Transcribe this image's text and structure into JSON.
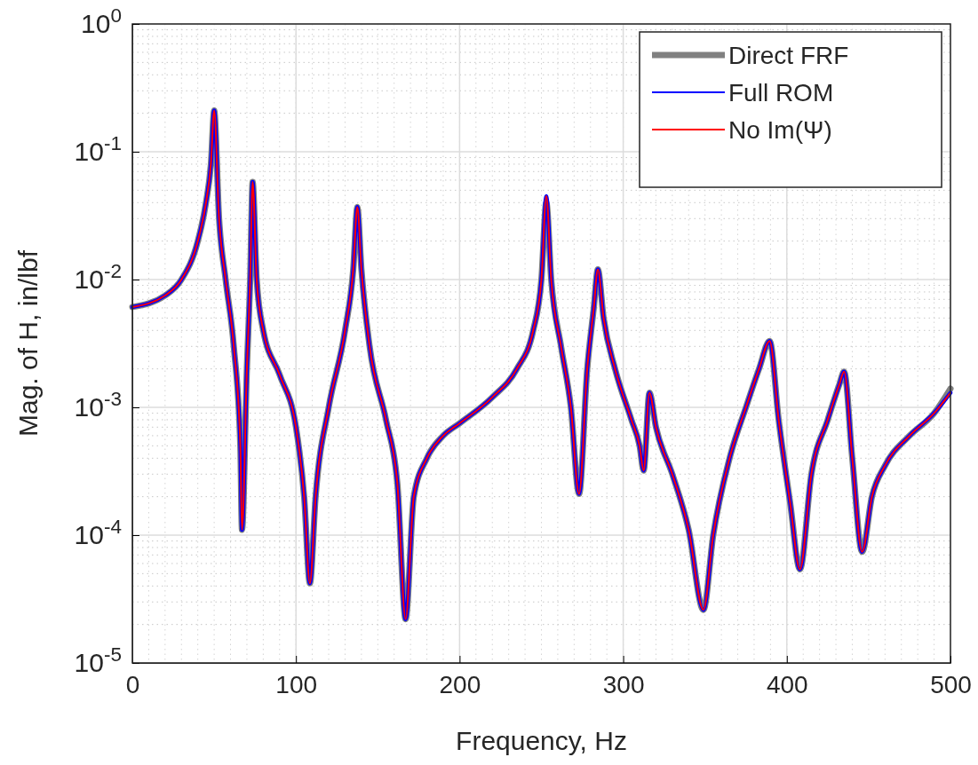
{
  "chart_data": {
    "type": "line",
    "xlabel": "Frequency, Hz",
    "ylabel": "Mag. of H, in/lbf",
    "x": [
      0,
      20,
      30,
      40,
      45,
      48,
      50,
      53,
      57,
      62,
      66,
      67,
      70,
      72,
      73.5,
      76,
      80,
      90,
      100,
      105,
      108.5,
      112,
      120,
      130,
      135,
      137.5,
      140,
      145,
      155,
      162,
      167,
      172,
      180,
      190,
      200,
      220,
      235,
      245,
      250,
      253,
      256,
      262,
      268,
      273,
      278,
      282,
      284.5,
      288,
      295,
      305,
      310,
      312.5,
      316,
      320,
      330,
      340,
      349,
      355,
      365,
      375,
      383,
      389.5,
      395,
      402,
      408,
      415,
      425,
      432,
      435,
      440,
      446,
      452,
      460,
      475,
      490,
      500
    ],
    "series": [
      {
        "name": "Direct FRF",
        "color": "#808080",
        "values": [
          0.0061,
          0.0075,
          0.01,
          0.02,
          0.04,
          0.08,
          0.21,
          0.03,
          0.01,
          0.003,
          0.0005,
          0.00011,
          0.002,
          0.01,
          0.058,
          0.01,
          0.004,
          0.0018,
          0.0007,
          0.0002,
          4.2e-05,
          0.0002,
          0.001,
          0.004,
          0.012,
          0.037,
          0.012,
          0.003,
          0.0008,
          0.00025,
          2.2e-05,
          0.0002,
          0.0004,
          0.0006,
          0.00075,
          0.0012,
          0.002,
          0.004,
          0.01,
          0.04,
          0.01,
          0.003,
          0.001,
          0.00021,
          0.002,
          0.006,
          0.012,
          0.005,
          0.002,
          0.0008,
          0.0005,
          0.00032,
          0.0013,
          0.0007,
          0.0003,
          0.00011,
          2.6e-05,
          0.0001,
          0.0004,
          0.001,
          0.002,
          0.0033,
          0.0008,
          0.00018,
          5.4e-05,
          0.0003,
          0.0008,
          0.0015,
          0.0019,
          0.0004,
          7.4e-05,
          0.0002,
          0.00035,
          0.0006,
          0.0009,
          0.0014
        ]
      },
      {
        "name": "Full ROM",
        "color": "#0000ff",
        "values": [
          0.0061,
          0.0075,
          0.01,
          0.02,
          0.04,
          0.08,
          0.21,
          0.03,
          0.01,
          0.003,
          0.0005,
          0.00011,
          0.002,
          0.01,
          0.058,
          0.01,
          0.004,
          0.0018,
          0.0007,
          0.0002,
          4.2e-05,
          0.0002,
          0.001,
          0.004,
          0.012,
          0.037,
          0.012,
          0.003,
          0.0008,
          0.00025,
          2.2e-05,
          0.0002,
          0.0004,
          0.0006,
          0.00075,
          0.0012,
          0.002,
          0.004,
          0.01,
          0.045,
          0.01,
          0.003,
          0.001,
          0.00021,
          0.002,
          0.006,
          0.012,
          0.005,
          0.002,
          0.0008,
          0.0005,
          0.00032,
          0.0013,
          0.0007,
          0.0003,
          0.00011,
          2.6e-05,
          0.0001,
          0.0004,
          0.001,
          0.002,
          0.0033,
          0.0008,
          0.00018,
          5.4e-05,
          0.0003,
          0.0008,
          0.0015,
          0.0019,
          0.0004,
          7.4e-05,
          0.0002,
          0.00035,
          0.0006,
          0.0009,
          0.0013
        ]
      },
      {
        "name": "No Im(Ψ)",
        "color": "#ff0000",
        "values": [
          0.0061,
          0.0075,
          0.01,
          0.02,
          0.04,
          0.08,
          0.21,
          0.03,
          0.01,
          0.003,
          0.0005,
          0.00011,
          0.002,
          0.01,
          0.058,
          0.01,
          0.004,
          0.0018,
          0.0007,
          0.0002,
          4.2e-05,
          0.0002,
          0.001,
          0.004,
          0.012,
          0.037,
          0.012,
          0.003,
          0.0008,
          0.00025,
          2.2e-05,
          0.0002,
          0.0004,
          0.0006,
          0.00075,
          0.0012,
          0.002,
          0.004,
          0.01,
          0.045,
          0.01,
          0.003,
          0.001,
          0.00021,
          0.002,
          0.006,
          0.012,
          0.005,
          0.002,
          0.0008,
          0.0005,
          0.00032,
          0.0013,
          0.0007,
          0.0003,
          0.00011,
          2.6e-05,
          0.0001,
          0.0004,
          0.001,
          0.002,
          0.0033,
          0.0008,
          0.00018,
          5.4e-05,
          0.0003,
          0.0008,
          0.0015,
          0.0019,
          0.0004,
          7.4e-05,
          0.0002,
          0.00035,
          0.0006,
          0.0009,
          0.0013
        ]
      }
    ],
    "xlim": [
      0,
      500
    ],
    "xticks": [
      0,
      100,
      200,
      300,
      400,
      500
    ],
    "ylim": [
      1e-05,
      1
    ],
    "yticks": [
      {
        "value": 1e-05,
        "label": "10$^{-5}$"
      },
      {
        "value": 0.0001,
        "label": "10$^{-4}$"
      },
      {
        "value": 0.001,
        "label": "10$^{-3}$"
      },
      {
        "value": 0.01,
        "label": "10$^{-2}$"
      },
      {
        "value": 0.1,
        "label": "10$^{-1}$"
      },
      {
        "value": 1,
        "label": "10$^{0}$"
      }
    ],
    "log": "y",
    "grid": true,
    "legend": "top right",
    "marker": "none",
    "line_style": "solid"
  }
}
